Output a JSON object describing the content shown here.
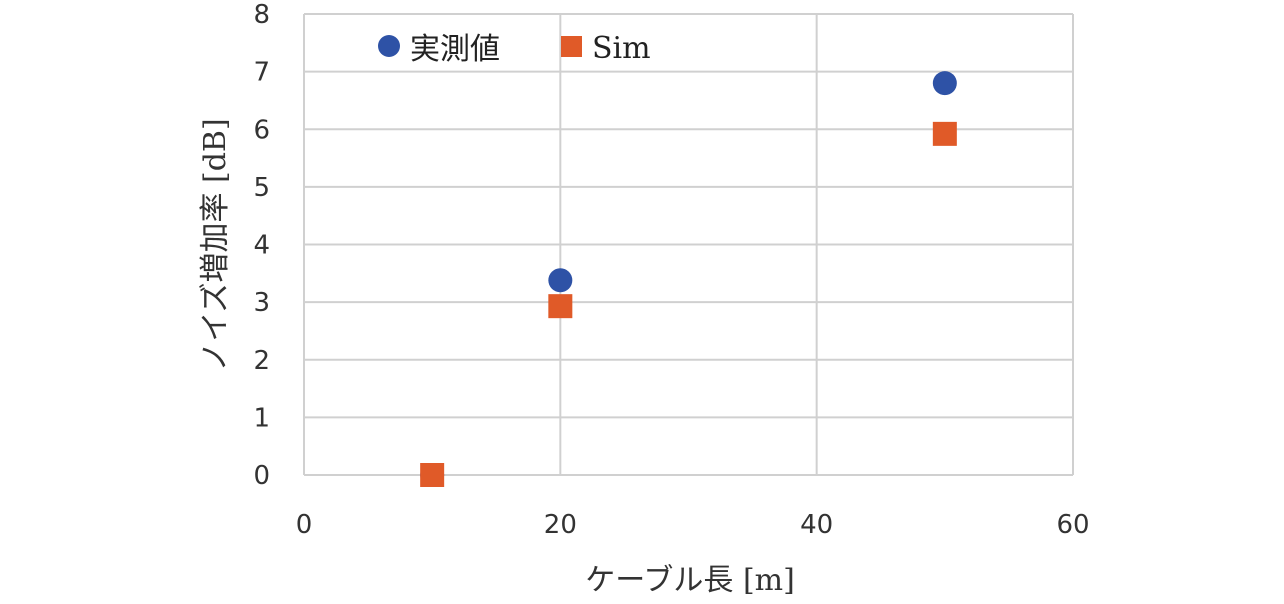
{
  "chart_data": {
    "type": "scatter",
    "xlabel": "ケーブル長 [m]",
    "ylabel": "ノイズ増加率 [dB]",
    "xlim": [
      0,
      60
    ],
    "ylim": [
      0,
      8
    ],
    "xticks": [
      0,
      20,
      40,
      60
    ],
    "yticks": [
      0,
      1,
      2,
      3,
      4,
      5,
      6,
      7,
      8
    ],
    "grid": true,
    "legend_position": "top-left",
    "series": [
      {
        "name": "実測値",
        "marker": "circle",
        "color": "#2e52a6",
        "x": [
          10,
          20,
          50
        ],
        "y": [
          0,
          3.38,
          6.8
        ]
      },
      {
        "name": "Sim",
        "marker": "square",
        "color": "#e05a28",
        "x": [
          10,
          20,
          50
        ],
        "y": [
          0,
          2.93,
          5.92
        ]
      }
    ]
  }
}
